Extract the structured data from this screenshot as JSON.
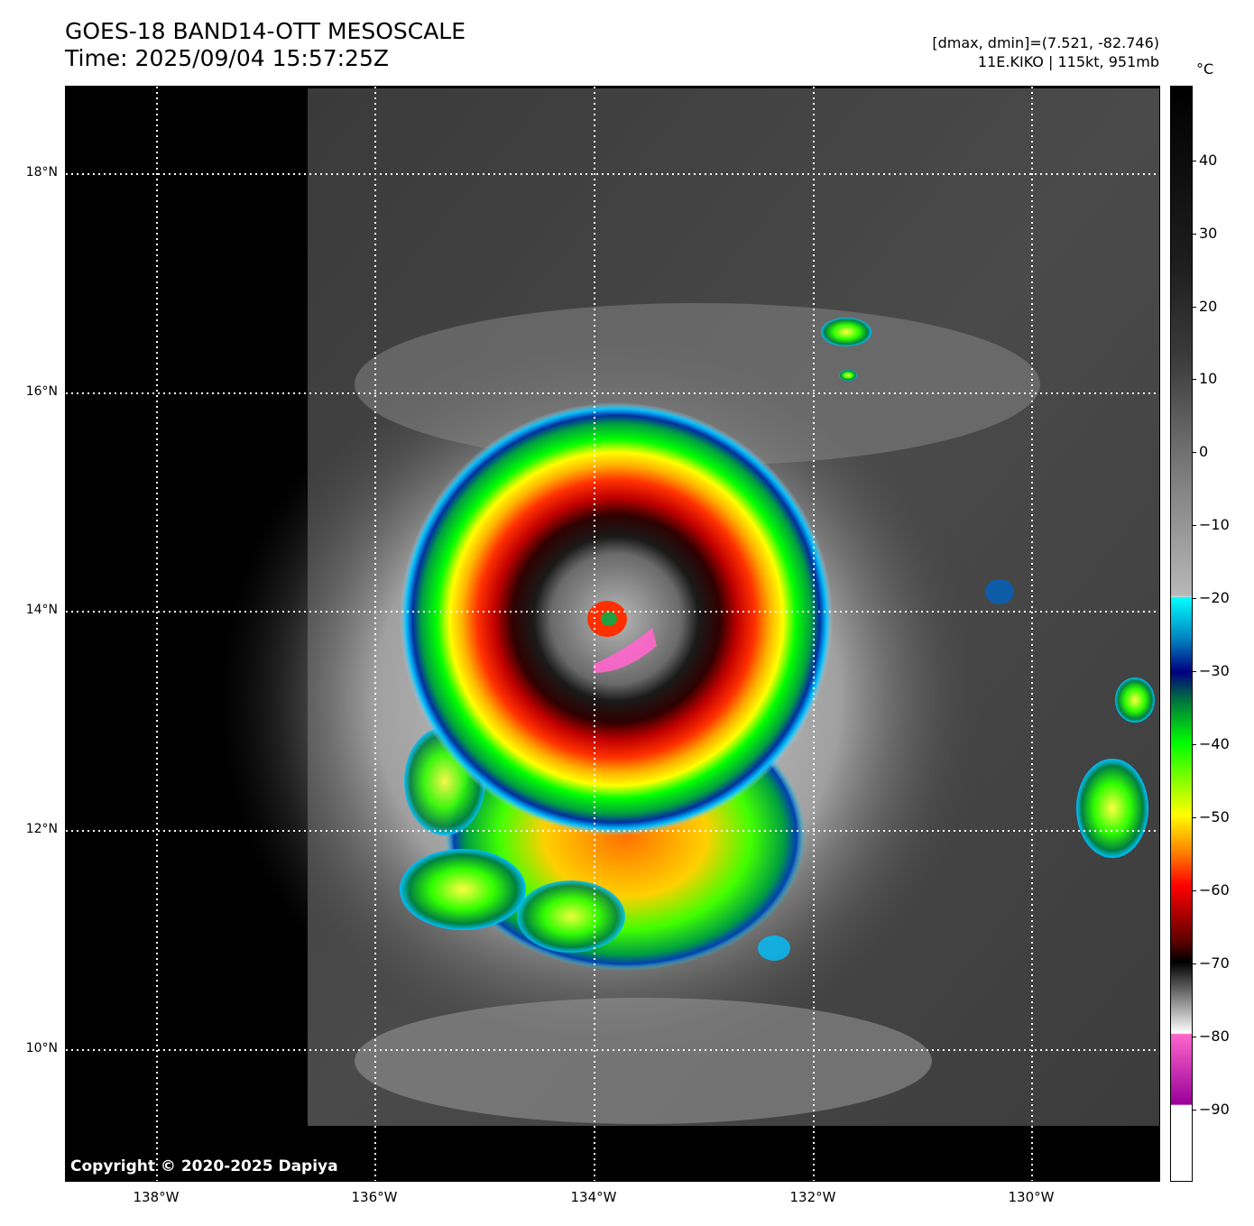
{
  "header": {
    "title_line1": "GOES-18 BAND14-OTT MESOSCALE",
    "title_line2": "Time: 2025/09/04 15:57:25Z",
    "info_line1": "[dmax, dmin]=(7.521, -82.746)",
    "info_line2": "11E.KIKO | 115kt, 951mb"
  },
  "map": {
    "copyright": "Copyright © 2020-2025 Dapiya",
    "lat_labels": [
      "18°N",
      "16°N",
      "14°N",
      "12°N",
      "10°N"
    ],
    "lon_labels": [
      "138°W",
      "136°W",
      "134°W",
      "132°W",
      "130°W"
    ],
    "storm_center": {
      "lat": 13.9,
      "lon": -133.9
    }
  },
  "colorbar": {
    "unit": "°C",
    "ticks": [
      "40",
      "30",
      "20",
      "10",
      "0",
      "−10",
      "−20",
      "−30",
      "−40",
      "−50",
      "−60",
      "−70",
      "−80",
      "−90"
    ],
    "range": [
      -100,
      50
    ],
    "colors": {
      "cyan": "#00ffff",
      "navy": "#000080",
      "green": "#00ff00",
      "yellow": "#ffff00",
      "red": "#ff0000",
      "dark_red": "#600000",
      "magenta": "#ff66cc",
      "purple": "#990099"
    }
  }
}
